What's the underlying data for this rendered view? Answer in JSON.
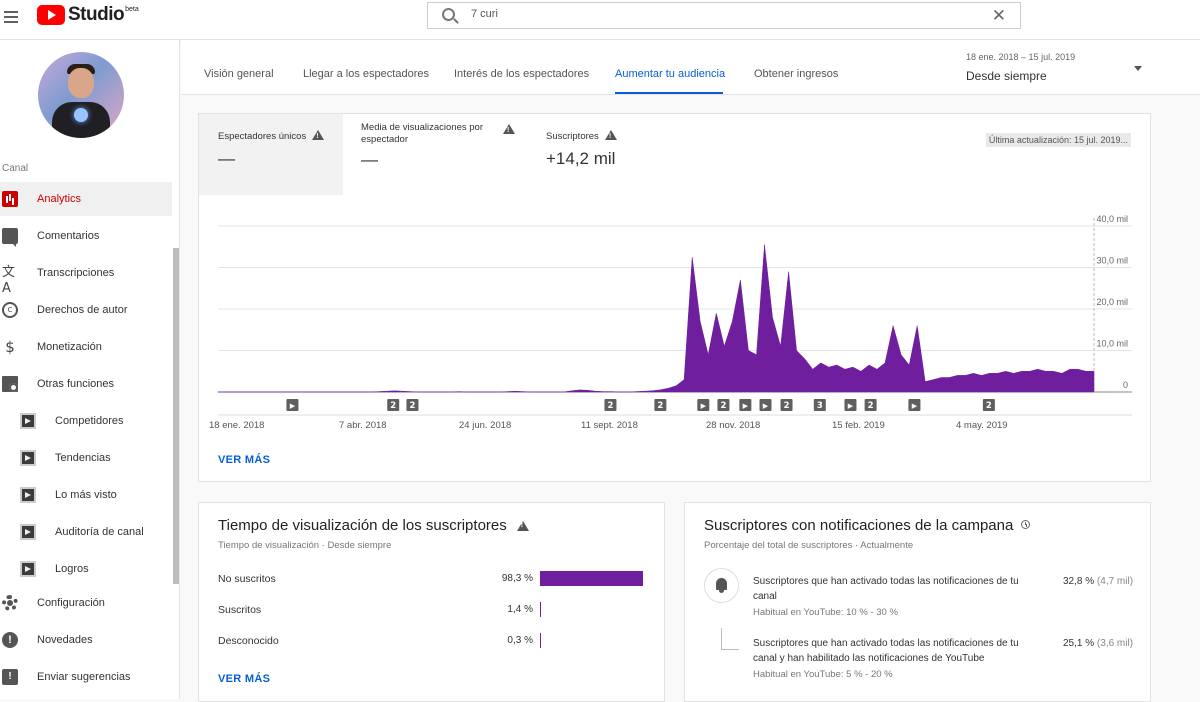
{
  "header": {
    "logo_text": "Studio",
    "logo_badge": "beta",
    "search_value": "7 curi"
  },
  "sidebar": {
    "section_label": "Canal",
    "items": [
      {
        "label": "Analytics",
        "icon": "analytics-icon",
        "active": true
      },
      {
        "label": "Comentarios",
        "icon": "comments-icon"
      },
      {
        "label": "Transcripciones",
        "icon": "translate-icon"
      },
      {
        "label": "Derechos de autor",
        "icon": "copyright-icon"
      },
      {
        "label": "Monetización",
        "icon": "dollar-icon"
      },
      {
        "label": "Otras funciones",
        "icon": "folder-icon"
      },
      {
        "label": "Competidores",
        "icon": "extension-icon"
      },
      {
        "label": "Tendencias",
        "icon": "extension-icon"
      },
      {
        "label": "Lo más visto",
        "icon": "extension-icon"
      },
      {
        "label": "Auditoría de canal",
        "icon": "extension-icon"
      },
      {
        "label": "Logros",
        "icon": "extension-icon"
      },
      {
        "label": "Configuración",
        "icon": "gear-icon"
      },
      {
        "label": "Novedades",
        "icon": "alert-icon"
      },
      {
        "label": "Enviar sugerencias",
        "icon": "feedback-icon"
      }
    ]
  },
  "tabs": {
    "items": [
      "Visión general",
      "Llegar a los espectadores",
      "Interés de los espectadores",
      "Aumentar tu audiencia",
      "Obtener ingresos"
    ],
    "active_index": 3,
    "date_range_sub": "18 ene. 2018 – 15 jul. 2019",
    "date_range_main": "Desde siempre"
  },
  "overview": {
    "metrics": [
      {
        "label": "Espectadores únicos",
        "value": "—"
      },
      {
        "label": "Media de visualizaciones por espectador",
        "value": "—"
      },
      {
        "label": "Suscriptores",
        "value": "+14,2 mil"
      }
    ],
    "last_updated": "Última actualización: 15 jul. 2019...",
    "ver_mas": "VER MÁS"
  },
  "chart_data": {
    "type": "area",
    "y_ticks": [
      "40,0 mil",
      "30,0 mil",
      "20,0 mil",
      "10,0 mil",
      "0"
    ],
    "ylim": [
      0,
      40000
    ],
    "x_ticks": [
      "18 ene. 2018",
      "7 abr. 2018",
      "24 jun. 2018",
      "11 sept. 2018",
      "28 nov. 2018",
      "15 feb. 2019",
      "4 may. 2019"
    ],
    "series_color": "#6f1e9e",
    "series": [
      {
        "values": [
          0,
          0,
          0,
          0,
          0,
          0,
          0,
          0,
          0,
          0,
          0,
          0,
          0,
          0,
          0,
          0,
          0,
          0,
          0,
          0,
          100,
          200,
          300,
          200,
          100,
          0,
          0,
          0,
          0,
          0,
          100,
          0,
          0,
          0,
          0,
          0,
          100,
          200,
          100,
          0,
          0,
          0,
          0,
          0,
          300,
          500,
          400,
          200,
          100,
          100,
          0,
          0,
          100,
          200,
          300,
          500,
          900,
          1500,
          3000,
          32500,
          17000,
          9000,
          19000,
          11000,
          17000,
          27000,
          10000,
          9000,
          35500,
          18000,
          11000,
          29000,
          10000,
          8000,
          5500,
          7000,
          6000,
          6500,
          5500,
          6000,
          5000,
          6500,
          5500,
          7000,
          16000,
          9000,
          6500,
          16000,
          2500,
          3000,
          3500,
          3500,
          4000,
          4000,
          4500,
          4000,
          4500,
          4500,
          5000,
          4500,
          5000,
          5000,
          5500,
          5000,
          5000,
          4500,
          5500,
          5500,
          5000,
          5000
        ]
      }
    ],
    "markers": [
      {
        "position": 0.085,
        "label": "▶"
      },
      {
        "position": 0.2,
        "label": "2"
      },
      {
        "position": 0.222,
        "label": "2"
      },
      {
        "position": 0.448,
        "label": "2"
      },
      {
        "position": 0.505,
        "label": "2"
      },
      {
        "position": 0.554,
        "label": "▶"
      },
      {
        "position": 0.577,
        "label": "2"
      },
      {
        "position": 0.602,
        "label": "▶"
      },
      {
        "position": 0.625,
        "label": "▶"
      },
      {
        "position": 0.649,
        "label": "2"
      },
      {
        "position": 0.687,
        "label": "3"
      },
      {
        "position": 0.722,
        "label": "▶"
      },
      {
        "position": 0.745,
        "label": "2"
      },
      {
        "position": 0.795,
        "label": "▶"
      },
      {
        "position": 0.88,
        "label": "2"
      }
    ]
  },
  "watch_time": {
    "title": "Tiempo de visualización de los suscriptores",
    "subtitle": "Tiempo de visualización · Desde siempre",
    "rows": [
      {
        "label": "No suscritos",
        "pct": "98,3 %",
        "value": 98.3
      },
      {
        "label": "Suscritos",
        "pct": "1,4 %",
        "value": 1.4
      },
      {
        "label": "Desconocido",
        "pct": "0,3 %",
        "value": 0.3
      }
    ],
    "ver_mas": "VER MÁS"
  },
  "notifications": {
    "title": "Suscriptores con notificaciones de la campana",
    "subtitle": "Porcentaje del total de suscriptores · Actualmente",
    "items": [
      {
        "text": "Suscriptores que han activado todas las notificaciones de tu canal",
        "habitual": "Habitual en YouTube: 10 % - 30 %",
        "pct": "32,8 %",
        "count": "(4,7 mil)"
      },
      {
        "text": "Suscriptores que han activado todas las notificaciones de tu canal y han habilitado las notificaciones de YouTube",
        "habitual": "Habitual en YouTube: 5 % - 20 %",
        "pct": "25,1 %",
        "count": "(3,6 mil)"
      }
    ]
  },
  "colors": {
    "accent": "#065fd4",
    "brand_red": "#ff0000",
    "series": "#6f1e9e"
  }
}
